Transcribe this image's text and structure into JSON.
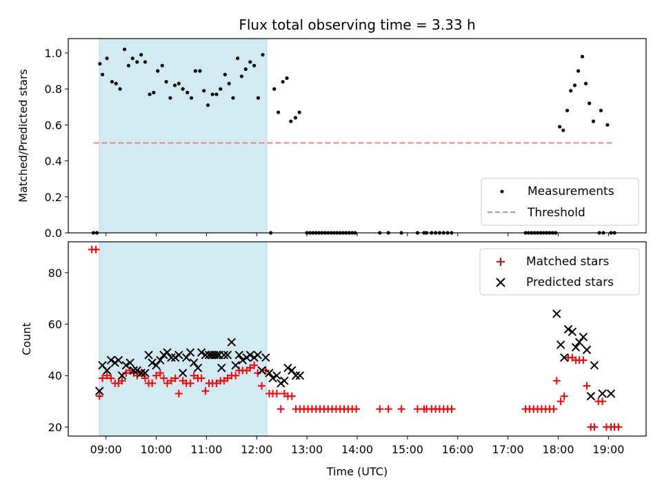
{
  "chart_data": {
    "title": "Flux total observing time = 3.33 h",
    "xlabel": "Time (UTC)",
    "xlim": [
      8.25,
      19.75
    ],
    "xticks": [
      9,
      10,
      11,
      12,
      13,
      14,
      15,
      16,
      17,
      18,
      19
    ],
    "xtick_labels": [
      "09:00",
      "10:00",
      "11:00",
      "12:00",
      "13:00",
      "14:00",
      "15:00",
      "16:00",
      "17:00",
      "18:00",
      "19:00"
    ],
    "shaded_interval": {
      "start": 8.87,
      "end": 12.2,
      "color": "#add8e6"
    },
    "panels": [
      {
        "type": "scatter",
        "ylabel": "Matched/Predicted stars",
        "ylim": [
          0,
          1.08
        ],
        "yticks": [
          0.0,
          0.2,
          0.4,
          0.6,
          0.8,
          1.0
        ],
        "ytick_labels": [
          "0.0",
          "0.2",
          "0.4",
          "0.6",
          "0.8",
          "1.0"
        ],
        "legend_position": "bottom-right",
        "threshold": {
          "name": "Threshold",
          "value": 0.5,
          "x_start": 8.75,
          "x_end": 19.1,
          "color": "#f08080"
        },
        "series": [
          {
            "name": "Measurements",
            "marker": "dot",
            "color": "#000000",
            "x": [
              8.75,
              8.82,
              8.88,
              8.93,
              9.02,
              9.12,
              9.2,
              9.28,
              9.37,
              9.45,
              9.53,
              9.62,
              9.7,
              9.78,
              9.87,
              9.95,
              10.03,
              10.12,
              10.2,
              10.28,
              10.37,
              10.45,
              10.53,
              10.62,
              10.7,
              10.78,
              10.87,
              10.95,
              11.03,
              11.12,
              11.2,
              11.28,
              11.37,
              11.45,
              11.53,
              11.62,
              11.7,
              11.78,
              11.87,
              11.95,
              12.03,
              12.12,
              12.28,
              12.35,
              12.43,
              12.52,
              12.6,
              12.68,
              12.77,
              12.85,
              13.0,
              13.06,
              13.12,
              13.18,
              13.24,
              13.3,
              13.36,
              13.42,
              13.48,
              13.54,
              13.6,
              13.66,
              13.72,
              13.78,
              13.84,
              13.9,
              13.96,
              14.45,
              14.62,
              14.88,
              15.2,
              15.33,
              15.38,
              15.48,
              15.56,
              15.64,
              15.72,
              15.8,
              15.88,
              17.35,
              17.41,
              17.47,
              17.53,
              17.59,
              17.65,
              17.71,
              17.77,
              17.83,
              17.89,
              17.95,
              18.03,
              18.1,
              18.18,
              18.25,
              18.33,
              18.4,
              18.48,
              18.55,
              18.62,
              18.7,
              18.85,
              18.82,
              18.9,
              18.98,
              19.05,
              19.12
            ],
            "y": [
              0.0,
              0.0,
              0.94,
              0.88,
              0.97,
              0.84,
              0.83,
              0.8,
              1.02,
              0.93,
              0.97,
              0.95,
              0.99,
              0.95,
              0.77,
              0.78,
              0.9,
              0.93,
              0.84,
              0.75,
              0.82,
              0.83,
              0.8,
              0.78,
              0.75,
              0.9,
              0.9,
              0.79,
              0.71,
              0.77,
              0.77,
              0.8,
              0.88,
              0.83,
              0.75,
              0.97,
              0.87,
              0.91,
              0.95,
              0.93,
              0.75,
              0.99,
              0.0,
              0.8,
              0.67,
              0.84,
              0.86,
              0.62,
              0.64,
              0.67,
              0.0,
              0.0,
              0.0,
              0.0,
              0.0,
              0.0,
              0.0,
              0.0,
              0.0,
              0.0,
              0.0,
              0.0,
              0.0,
              0.0,
              0.0,
              0.0,
              0.0,
              0.0,
              0.0,
              0.0,
              0.0,
              0.0,
              0.0,
              0.0,
              0.0,
              0.0,
              0.0,
              0.0,
              0.0,
              0.0,
              0.0,
              0.0,
              0.0,
              0.0,
              0.0,
              0.0,
              0.0,
              0.0,
              0.0,
              0.0,
              0.59,
              0.57,
              0.68,
              0.79,
              0.82,
              0.9,
              0.98,
              0.83,
              0.72,
              0.62,
              0.68,
              0.0,
              0.0,
              0.6,
              0.0,
              0.0
            ]
          }
        ]
      },
      {
        "type": "scatter",
        "ylabel": "Count",
        "ylim": [
          16.5,
          92
        ],
        "yticks": [
          20,
          40,
          60,
          80
        ],
        "ytick_labels": [
          "20",
          "40",
          "60",
          "80"
        ],
        "legend_position": "top-right",
        "series": [
          {
            "name": "Matched stars",
            "marker": "plus",
            "color": "#ff0000",
            "x": [
              8.72,
              8.8,
              8.87,
              8.93,
              9.02,
              9.1,
              9.18,
              9.25,
              9.32,
              9.4,
              9.48,
              9.55,
              9.62,
              9.7,
              9.78,
              9.85,
              9.92,
              10.0,
              10.08,
              10.15,
              10.22,
              10.3,
              10.38,
              10.45,
              10.53,
              10.6,
              10.68,
              10.75,
              10.83,
              10.9,
              10.98,
              11.05,
              11.12,
              11.2,
              11.28,
              11.35,
              11.42,
              11.5,
              11.58,
              11.65,
              11.72,
              11.8,
              11.87,
              11.95,
              12.02,
              12.1,
              12.18,
              12.25,
              12.32,
              12.4,
              12.48,
              12.55,
              12.62,
              12.7,
              12.78,
              12.86,
              12.94,
              13.02,
              13.1,
              13.18,
              13.26,
              13.34,
              13.42,
              13.5,
              13.58,
              13.66,
              13.74,
              13.82,
              13.9,
              13.98,
              14.45,
              14.62,
              14.88,
              15.2,
              15.33,
              15.38,
              15.48,
              15.56,
              15.64,
              15.72,
              15.8,
              15.88,
              17.35,
              17.43,
              17.51,
              17.59,
              17.67,
              17.75,
              17.83,
              17.91,
              17.97,
              18.05,
              18.12,
              18.2,
              18.28,
              18.35,
              18.42,
              18.5,
              18.57,
              18.65,
              18.72,
              18.8,
              18.88,
              18.96,
              19.05,
              19.12,
              19.2
            ],
            "y": [
              89,
              89,
              32,
              39,
              40,
              39,
              37,
              37,
              38,
              41,
              42,
              41,
              40,
              41,
              39,
              37,
              37,
              40,
              41,
              39,
              37,
              38,
              39,
              33,
              38,
              37,
              37,
              40,
              39,
              39,
              34,
              37,
              37,
              37,
              38,
              38,
              39,
              40,
              40,
              42,
              42,
              42,
              43,
              44,
              41,
              36,
              42,
              33,
              33,
              33,
              27,
              33,
              32,
              32,
              27,
              27,
              27,
              27,
              27,
              27,
              27,
              27,
              27,
              27,
              27,
              27,
              27,
              27,
              27,
              27,
              27,
              27,
              27,
              27,
              27,
              27,
              27,
              27,
              27,
              27,
              27,
              27,
              27,
              27,
              27,
              27,
              27,
              27,
              27,
              27,
              38,
              30,
              32,
              47,
              47,
              46,
              46,
              46,
              36,
              20,
              20,
              30,
              30,
              20,
              20,
              20,
              20
            ]
          },
          {
            "name": "Predicted stars",
            "marker": "x",
            "color": "#000000",
            "x": [
              8.87,
              8.93,
              9.02,
              9.1,
              9.18,
              9.25,
              9.32,
              9.4,
              9.48,
              9.55,
              9.62,
              9.7,
              9.78,
              9.85,
              9.92,
              10.0,
              10.08,
              10.15,
              10.22,
              10.3,
              10.38,
              10.45,
              10.53,
              10.6,
              10.68,
              10.75,
              10.83,
              10.9,
              10.98,
              11.05,
              11.1,
              11.15,
              11.2,
              11.25,
              11.3,
              11.35,
              11.42,
              11.5,
              11.58,
              11.65,
              11.72,
              11.8,
              11.87,
              11.95,
              12.02,
              12.1,
              12.18,
              12.25,
              12.32,
              12.4,
              12.48,
              12.55,
              12.62,
              12.7,
              12.78,
              12.86,
              17.97,
              18.05,
              18.12,
              18.2,
              18.28,
              18.35,
              18.42,
              18.5,
              18.57,
              18.65,
              18.72,
              18.88,
              19.05
            ],
            "y": [
              34,
              44,
              42,
              46,
              45,
              46,
              40,
              44,
              45,
              42,
              42,
              41,
              41,
              48,
              45,
              44,
              46,
              48,
              49,
              47,
              47,
              48,
              41,
              47,
              49,
              45,
              43,
              49,
              48,
              48,
              48,
              48,
              48,
              48,
              43,
              48,
              48,
              53,
              44,
              48,
              46,
              47,
              48,
              47,
              48,
              42,
              47,
              41,
              39,
              40,
              37,
              38,
              43,
              42,
              40,
              40,
              64,
              52,
              47,
              58,
              57,
              51,
              53,
              55,
              50,
              32,
              44,
              33,
              33
            ]
          }
        ]
      }
    ]
  }
}
